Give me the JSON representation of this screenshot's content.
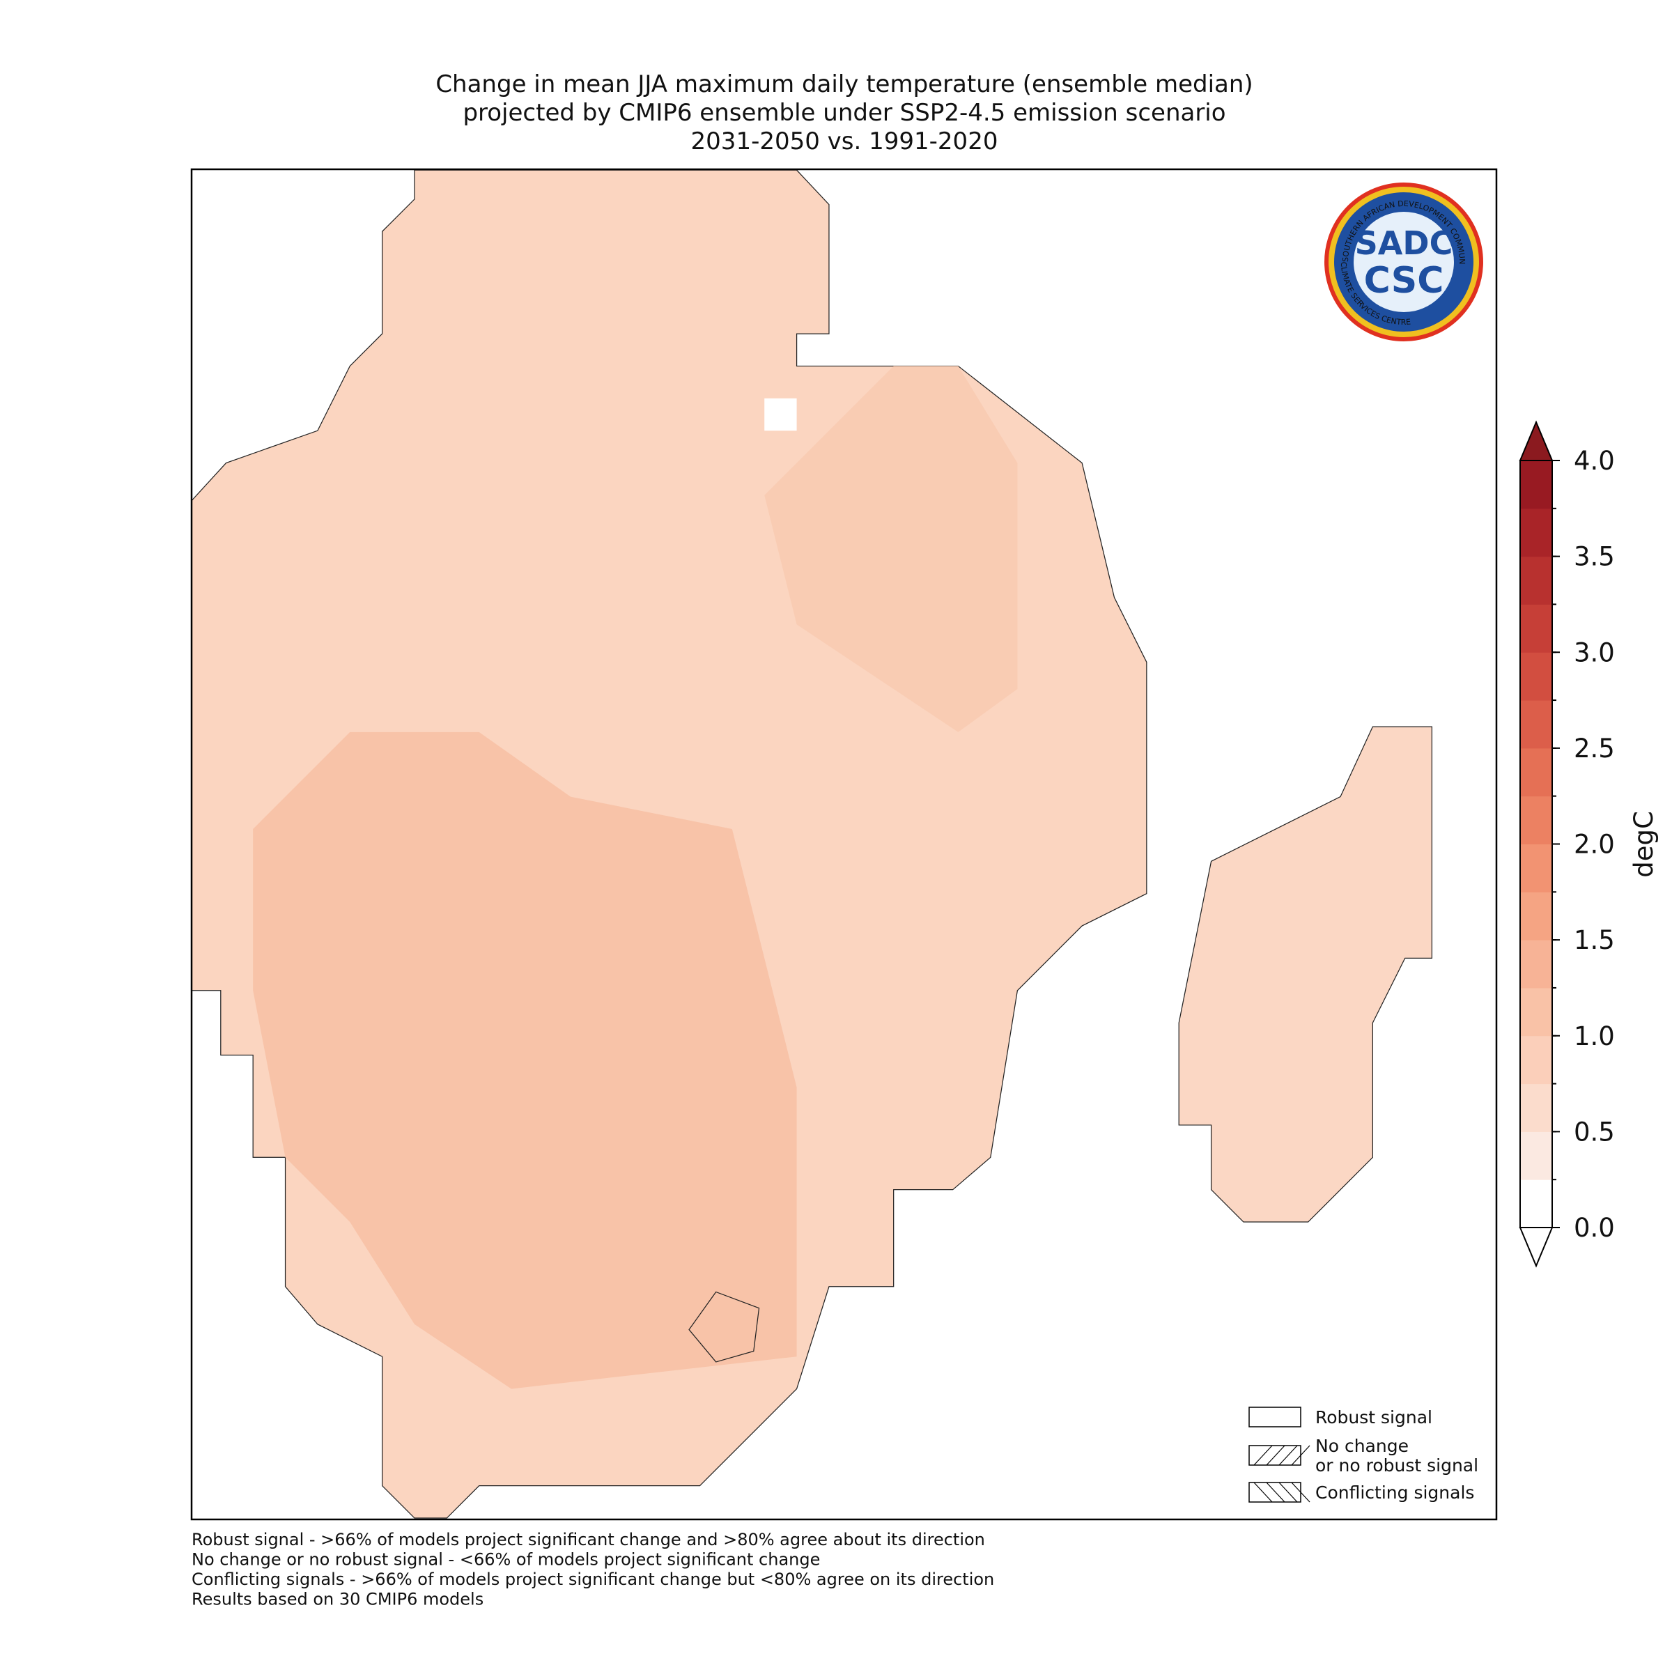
{
  "title": [
    "Change in mean JJA maximum daily temperature (ensemble median)",
    "projected by CMIP6 ensemble under SSP2-4.5 emission scenario",
    "2031-2050 vs. 1991-2020"
  ],
  "colorbar": {
    "label": "degC",
    "lim": [
      0,
      4
    ],
    "ticks": [
      {
        "value": 0,
        "label": "0.0"
      },
      {
        "value": 0.5,
        "label": "0.5"
      },
      {
        "value": 1,
        "label": "1.0"
      },
      {
        "value": 1.5,
        "label": "1.5"
      },
      {
        "value": 2,
        "label": "2.0"
      },
      {
        "value": 2.5,
        "label": "2.5"
      },
      {
        "value": 3,
        "label": "3.0"
      },
      {
        "value": 3.5,
        "label": "3.5"
      },
      {
        "value": 4,
        "label": "4.0"
      }
    ],
    "colors": [
      "#ffffff",
      "#fbe9e1",
      "#fbdccc",
      "#fbcfba",
      "#f9c2a7",
      "#f7b396",
      "#f5a483",
      "#f29372",
      "#ec8162",
      "#e57055",
      "#dc5e4a",
      "#d24e40",
      "#c63f37",
      "#b8312f",
      "#a92428",
      "#981a22"
    ],
    "under_color": "#ffffff",
    "over_color": "#8b1a1f"
  },
  "legend": [
    "Robust signal",
    "No change\nor no robust signal",
    "Conflicting signals"
  ],
  "footnotes": [
    "Robust signal - >66% of models project significant change and >80% agree about its direction",
    "No change or no robust signal - <66% of models project significant change",
    "Conflicting signals - >66% of models project significant change but <80% agree on its direction",
    "Results based on 30 CMIP6 models"
  ],
  "logo": {
    "name": "SADC",
    "short": "CSC",
    "ring_top": "SOUTHERN AFRICAN DEVELOPMENT COMMUNITY",
    "ring_bottom": "CLIMATE SERVICES CENTRE"
  }
}
